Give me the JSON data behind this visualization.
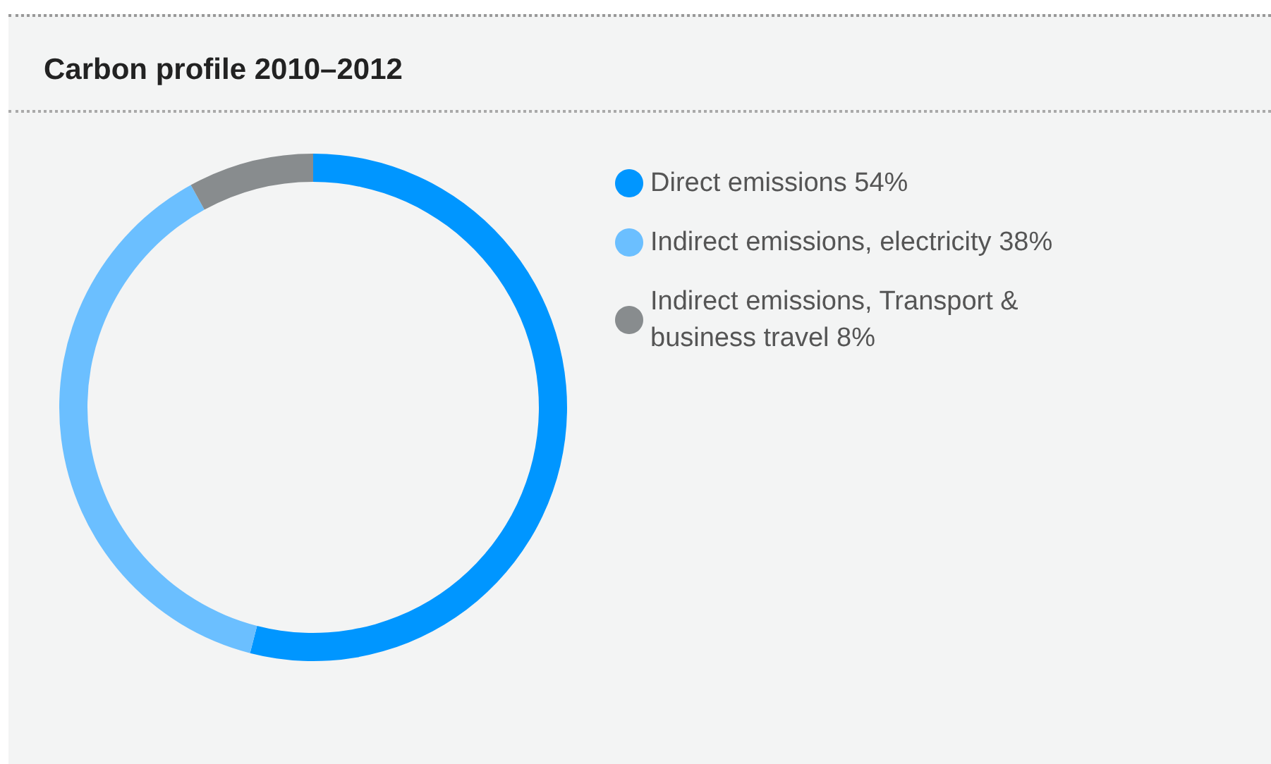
{
  "chart_data": {
    "type": "donut",
    "title": "Carbon profile 2010–2012",
    "categories": [
      "Direct emissions",
      "Indirect emissions, electricity",
      "Indirect emissions, Transport & business travel"
    ],
    "values": [
      54,
      38,
      8
    ],
    "value_labels": [
      "54%",
      "38%",
      "8%"
    ],
    "colors": [
      "#0096ff",
      "#6bbfff",
      "#888c8e"
    ],
    "legend": "right"
  }
}
